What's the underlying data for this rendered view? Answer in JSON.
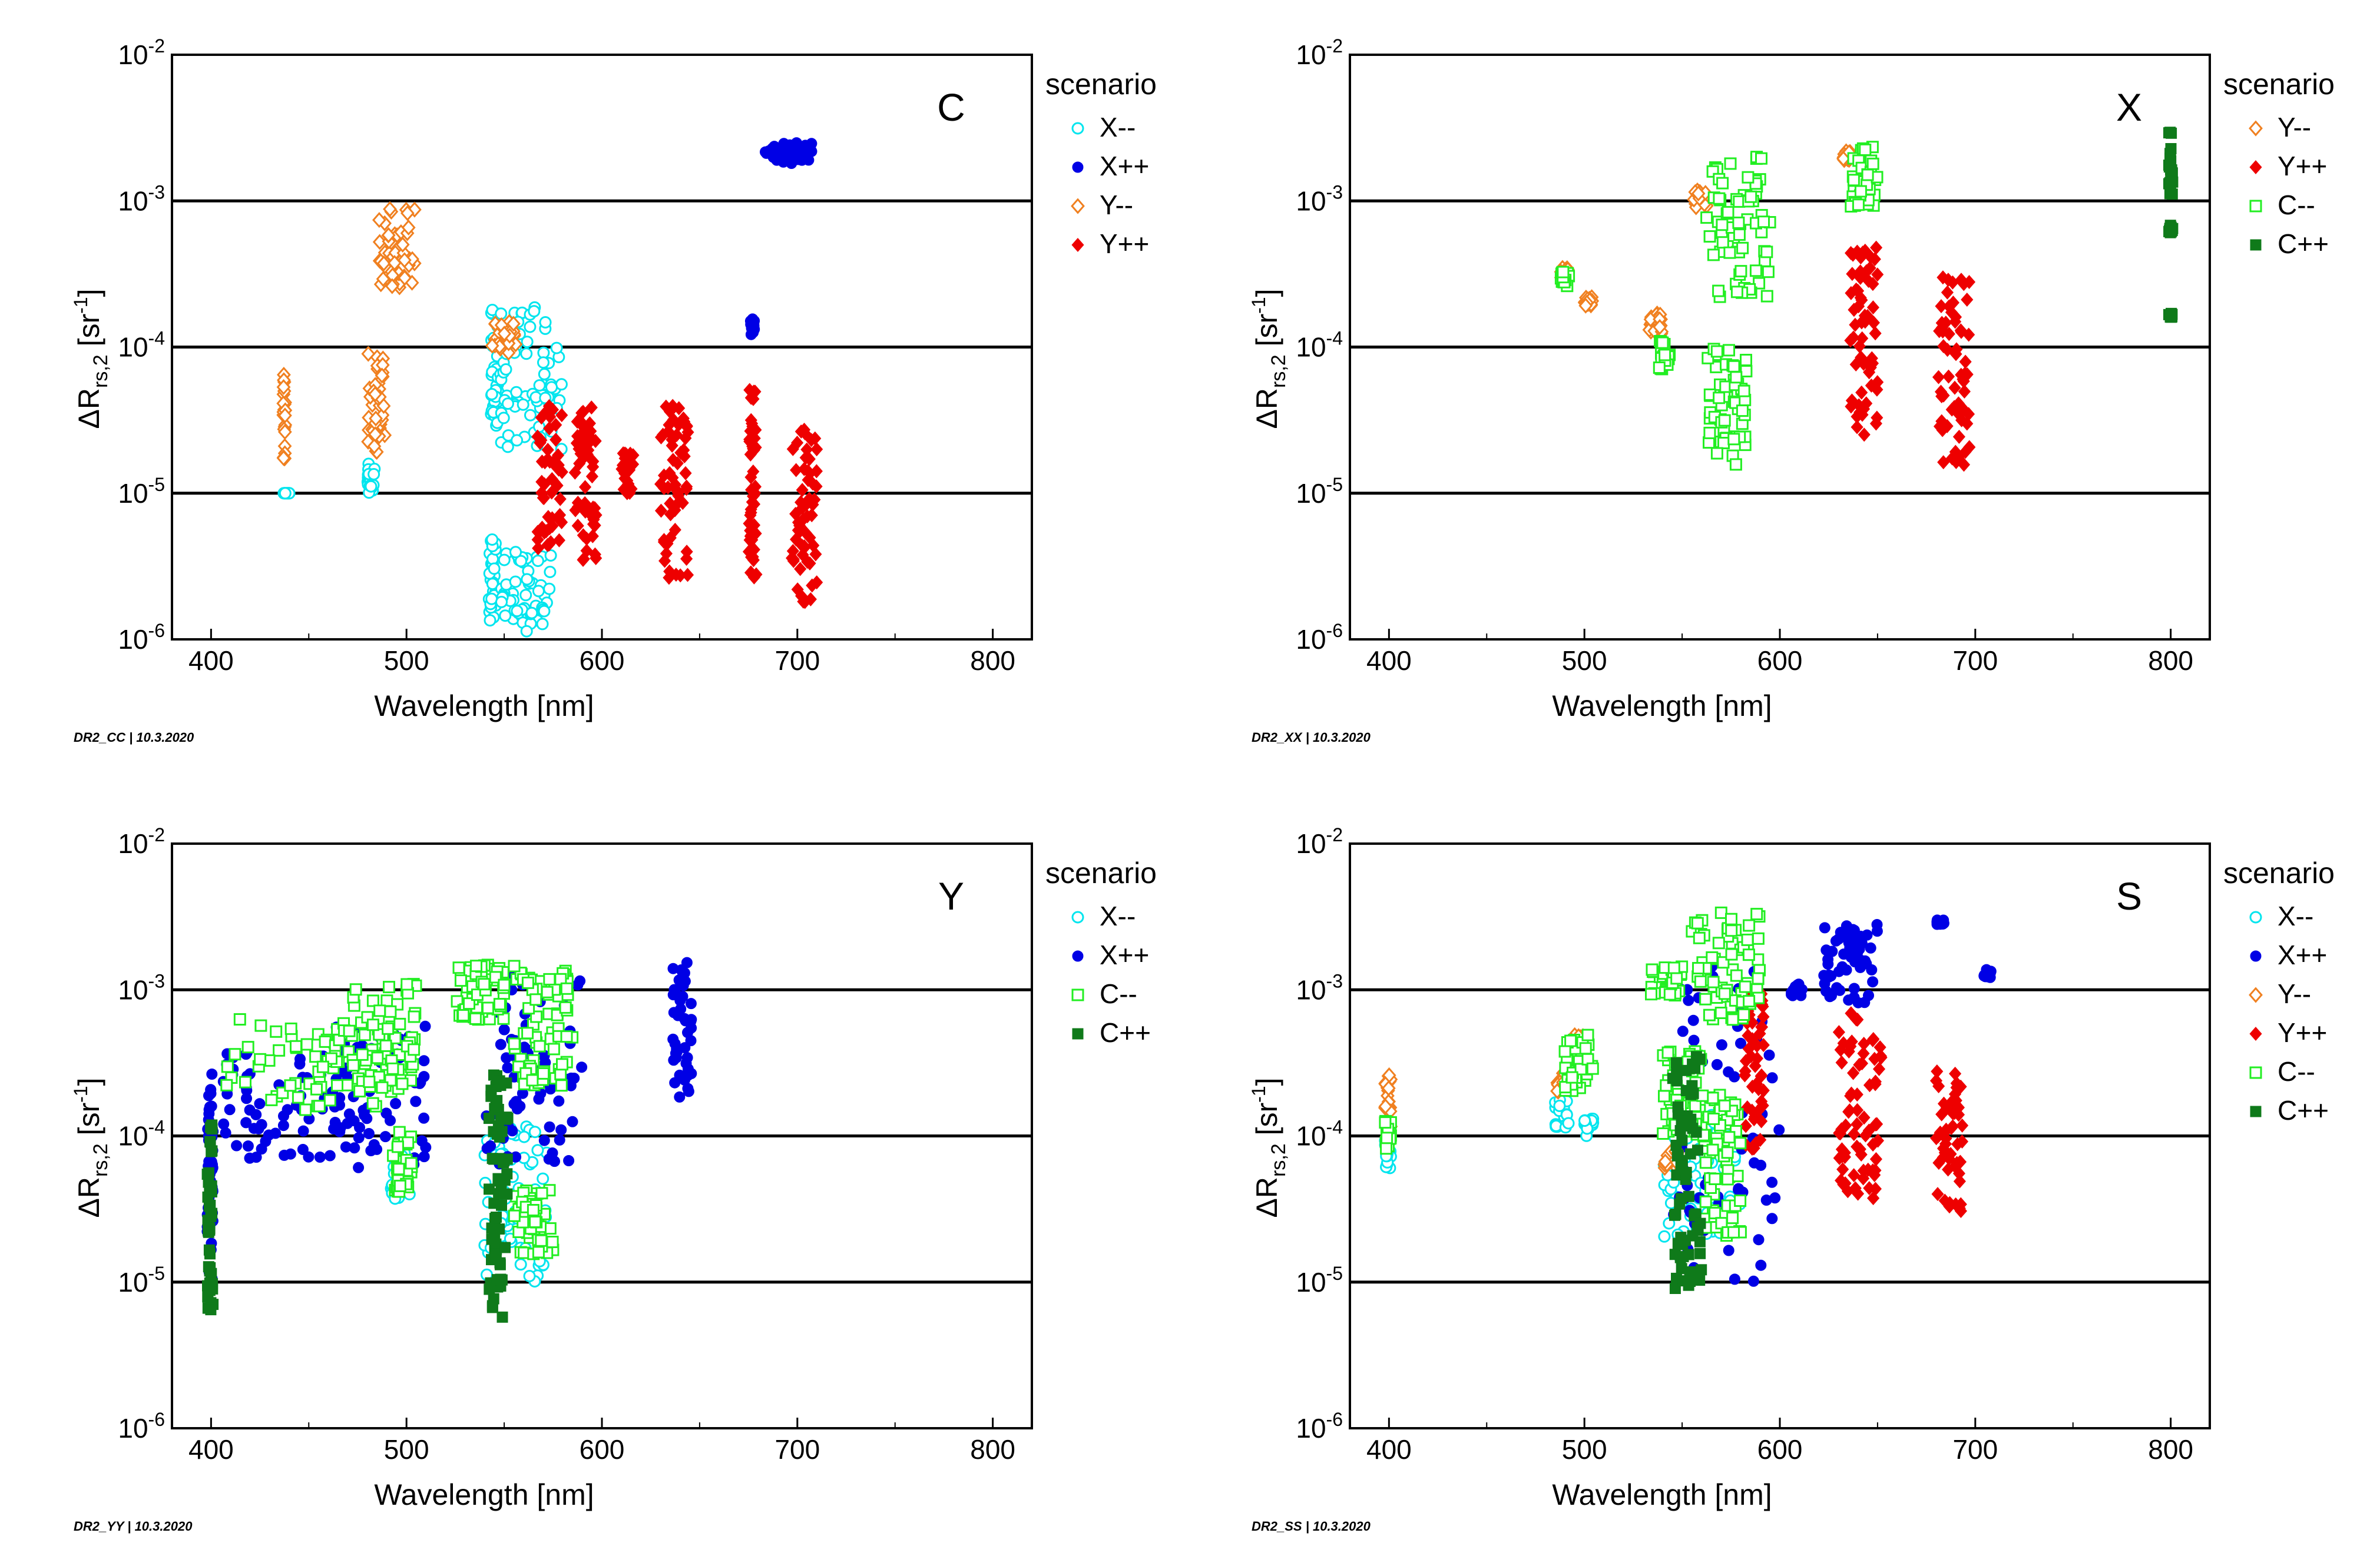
{
  "chart_data": [
    {
      "type": "scatter",
      "panel_label": "C",
      "footer": "DR2_CC | 10.3.2020",
      "xlabel": "Wavelength [nm]",
      "ylabel_main": "ΔR",
      "ylabel_sub": "rs,2",
      "ylabel_unit_open": " [sr",
      "ylabel_unit_exp": "-1",
      "ylabel_unit_close": "]",
      "xlim": [
        380,
        820
      ],
      "ylim": [
        1e-06,
        0.01
      ],
      "yscale": "log",
      "xticks": [
        400,
        500,
        600,
        700,
        800
      ],
      "xtick_labels": [
        "400",
        "500",
        "600",
        "700",
        "800"
      ],
      "ytick_base": "10",
      "yticks": [
        1e-06,
        1e-05,
        0.0001,
        0.001,
        0.01
      ],
      "ytick_exps": [
        "-6",
        "-5",
        "-4",
        "-3",
        "-2"
      ],
      "reference_lines": [
        1e-05,
        0.0001,
        0.001
      ],
      "legend_title": "scenario",
      "series": [
        {
          "name": "X--",
          "color": "#00e5ee",
          "marker": "circle-open",
          "clusters": [
            [
              437,
              440,
              1e-05,
              1e-05
            ],
            [
              480,
              484,
              1e-05,
              1.6e-05
            ],
            [
              542,
              546,
              1.3e-06,
              5e-06
            ],
            [
              543,
              547,
              2.8e-05,
              0.00018
            ],
            [
              548,
              575,
              1.1e-06,
              4e-06
            ],
            [
              548,
              580,
              2e-05,
              0.0002
            ]
          ]
        },
        {
          "name": "X++",
          "color": "#0000e5",
          "marker": "circle-filled",
          "clusters": [
            [
              676,
              678,
              0.00012,
              0.00016
            ],
            [
              683,
              708,
              0.0018,
              0.0025
            ]
          ]
        },
        {
          "name": "Y--",
          "color": "#f08020",
          "marker": "diamond-open",
          "clusters": [
            [
              437,
              438,
              1.7e-05,
              6.5e-05
            ],
            [
              480,
              489,
              1.8e-05,
              9e-05
            ],
            [
              486,
              505,
              0.00025,
              0.0009
            ],
            [
              543,
              556,
              9e-05,
              0.00015
            ]
          ]
        },
        {
          "name": "Y++",
          "color": "#ee0000",
          "marker": "diamond-filled",
          "clusters": [
            [
              567,
              580,
              4e-06,
              4e-05
            ],
            [
              586,
              597,
              3e-06,
              4e-05
            ],
            [
              610,
              616,
              1e-05,
              2e-05
            ],
            [
              630,
              644,
              2.5e-06,
              4.5e-05
            ],
            [
              675,
              679,
              2.5e-06,
              6e-05
            ],
            [
              697,
              710,
              1.8e-06,
              2.8e-05
            ]
          ]
        }
      ]
    },
    {
      "type": "scatter",
      "panel_label": "X",
      "footer": "DR2_XX | 10.3.2020",
      "xlabel": "Wavelength [nm]",
      "ylabel_main": "ΔR",
      "ylabel_sub": "rs,2",
      "ylabel_unit_open": " [sr",
      "ylabel_unit_exp": "-1",
      "ylabel_unit_close": "]",
      "xlim": [
        380,
        820
      ],
      "ylim": [
        1e-06,
        0.01
      ],
      "yscale": "log",
      "xticks": [
        400,
        500,
        600,
        700,
        800
      ],
      "xtick_labels": [
        "400",
        "500",
        "600",
        "700",
        "800"
      ],
      "ytick_base": "10",
      "yticks": [
        1e-06,
        1e-05,
        0.0001,
        0.001,
        0.01
      ],
      "ytick_exps": [
        "-6",
        "-5",
        "-4",
        "-3",
        "-2"
      ],
      "reference_lines": [
        1e-05,
        0.0001,
        0.001
      ],
      "legend_title": "scenario",
      "series": [
        {
          "name": "Y--",
          "color": "#f08020",
          "marker": "diamond-open",
          "clusters": [
            [
              488,
              492,
              0.00028,
              0.00035
            ],
            [
              500,
              504,
              0.00019,
              0.00022
            ],
            [
              533,
              540,
              0.00012,
              0.00017
            ],
            [
              556,
              563,
              0.0009,
              0.0012
            ],
            [
              632,
              637,
              0.0019,
              0.0022
            ]
          ]
        },
        {
          "name": "Y++",
          "color": "#ee0000",
          "marker": "diamond-filled",
          "clusters": [
            [
              636,
              650,
              2.5e-05,
              0.0005
            ],
            [
              681,
              697,
              1.5e-05,
              0.0003
            ]
          ]
        },
        {
          "name": "C--",
          "color": "#22ee22",
          "marker": "square-open",
          "clusters": [
            [
              488,
              492,
              0.00026,
              0.00034
            ],
            [
              538,
              544,
              7e-05,
              0.00011
            ],
            [
              563,
              583,
              1.5e-05,
              0.0001
            ],
            [
              562,
              595,
              0.00022,
              0.0022
            ],
            [
              635,
              650,
              0.0009,
              0.0024
            ]
          ]
        },
        {
          "name": "C++",
          "color": "#0f7a1a",
          "marker": "square-filled",
          "clusters": [
            [
              799,
              801,
              0.00016,
              0.00017
            ],
            [
              799,
              801,
              0.0006,
              0.0007
            ],
            [
              799,
              801,
              0.0011,
              0.003
            ]
          ]
        }
      ]
    },
    {
      "type": "scatter",
      "panel_label": "Y",
      "footer": "DR2_YY | 10.3.2020",
      "xlabel": "Wavelength [nm]",
      "ylabel_main": "ΔR",
      "ylabel_sub": "rs,2",
      "ylabel_unit_open": " [sr",
      "ylabel_unit_exp": "-1",
      "ylabel_unit_close": "]",
      "xlim": [
        380,
        820
      ],
      "ylim": [
        1e-06,
        0.01
      ],
      "yscale": "log",
      "xticks": [
        400,
        500,
        600,
        700,
        800
      ],
      "xtick_labels": [
        "400",
        "500",
        "600",
        "700",
        "800"
      ],
      "ytick_base": "10",
      "yticks": [
        1e-06,
        1e-05,
        0.0001,
        0.001,
        0.01
      ],
      "ytick_exps": [
        "-6",
        "-5",
        "-4",
        "-3",
        "-2"
      ],
      "reference_lines": [
        1e-05,
        0.0001,
        0.001
      ],
      "legend_title": "scenario",
      "series": [
        {
          "name": "X--",
          "color": "#00e5ee",
          "marker": "circle-open",
          "clusters": [
            [
              492,
              502,
              3.5e-05,
              8e-05
            ],
            [
              540,
              572,
              1e-05,
              0.00012
            ]
          ]
        },
        {
          "name": "X++",
          "color": "#0000e5",
          "marker": "circle-filled",
          "clusters": [
            [
              398,
              401,
              1e-05,
              0.00032
            ],
            [
              405,
              470,
              6.5e-05,
              0.0004
            ],
            [
              460,
              510,
              6e-05,
              0.0006
            ],
            [
              540,
              590,
              6e-05,
              0.0013
            ],
            [
              636,
              646,
              0.00016,
              0.0016
            ]
          ]
        },
        {
          "name": "C--",
          "color": "#22ee22",
          "marker": "square-open",
          "clusters": [
            [
              405,
              500,
              0.00015,
              0.00065
            ],
            [
              470,
              505,
              0.0002,
              0.0011
            ],
            [
              493,
              503,
              4e-05,
              0.00011
            ],
            [
              525,
              550,
              0.0006,
              0.0015
            ],
            [
              555,
              585,
              0.00022,
              0.0015
            ],
            [
              555,
              575,
              1.5e-05,
              4.5e-05
            ]
          ]
        },
        {
          "name": "C++",
          "color": "#0f7a1a",
          "marker": "square-filled",
          "clusters": [
            [
              398,
              401,
              6e-06,
              0.00012
            ],
            [
              542,
              552,
              5.5e-06,
              0.00028
            ]
          ]
        }
      ]
    },
    {
      "type": "scatter",
      "panel_label": "S",
      "footer": "DR2_SS | 10.3.2020",
      "xlabel": "Wavelength [nm]",
      "ylabel_main": "ΔR",
      "ylabel_sub": "rs,2",
      "ylabel_unit_open": " [sr",
      "ylabel_unit_exp": "-1",
      "ylabel_unit_close": "]",
      "xlim": [
        380,
        820
      ],
      "ylim": [
        1e-06,
        0.01
      ],
      "yscale": "log",
      "xticks": [
        400,
        500,
        600,
        700,
        800
      ],
      "xtick_labels": [
        "400",
        "500",
        "600",
        "700",
        "800"
      ],
      "ytick_base": "10",
      "yticks": [
        1e-06,
        1e-05,
        0.0001,
        0.001,
        0.01
      ],
      "ytick_exps": [
        "-6",
        "-5",
        "-4",
        "-3",
        "-2"
      ],
      "reference_lines": [
        1e-05,
        0.0001,
        0.001
      ],
      "legend_title": "scenario",
      "series": [
        {
          "name": "X--",
          "color": "#00e5ee",
          "marker": "circle-open",
          "clusters": [
            [
              398,
              401,
              6e-05,
              0.0001
            ],
            [
              485,
              492,
              0.00011,
              0.00018
            ],
            [
              500,
              505,
              9e-05,
              0.00014
            ],
            [
              540,
              580,
              2e-05,
              0.00015
            ]
          ]
        },
        {
          "name": "X++",
          "color": "#0000e5",
          "marker": "circle-filled",
          "clusters": [
            [
              545,
              600,
              1e-05,
              0.0015
            ],
            [
              605,
              612,
              0.0009,
              0.0011
            ],
            [
              622,
              650,
              0.0008,
              0.0028
            ],
            [
              680,
              684,
              0.0028,
              0.003
            ],
            [
              704,
              708,
              0.0012,
              0.0014
            ]
          ]
        },
        {
          "name": "Y--",
          "color": "#f08020",
          "marker": "diamond-open",
          "clusters": [
            [
              398,
              401,
              8e-05,
              0.00028
            ],
            [
              486,
              492,
              0.0002,
              0.00027
            ],
            [
              493,
              500,
              0.0004,
              0.0005
            ],
            [
              540,
              548,
              6e-05,
              8e-05
            ]
          ]
        },
        {
          "name": "Y++",
          "color": "#ee0000",
          "marker": "diamond-filled",
          "clusters": [
            [
              582,
              592,
              8e-05,
              0.001
            ],
            [
              630,
              652,
              3.5e-05,
              0.0007
            ],
            [
              680,
              694,
              3e-05,
              0.00028
            ]
          ]
        },
        {
          "name": "C--",
          "color": "#22ee22",
          "marker": "square-open",
          "clusters": [
            [
              398,
              401,
              8e-05,
              0.00013
            ],
            [
              490,
              505,
              0.0002,
              0.0005
            ],
            [
              532,
              550,
              0.0009,
              0.0015
            ],
            [
              540,
              560,
              0.0001,
              0.0004
            ],
            [
              555,
              590,
              0.0006,
              0.0035
            ],
            [
              560,
              580,
              2e-05,
              0.0002
            ]
          ]
        },
        {
          "name": "C++",
          "color": "#0f7a1a",
          "marker": "square-filled",
          "clusters": [
            [
              545,
              560,
              9e-06,
              0.00035
            ]
          ]
        }
      ]
    }
  ]
}
